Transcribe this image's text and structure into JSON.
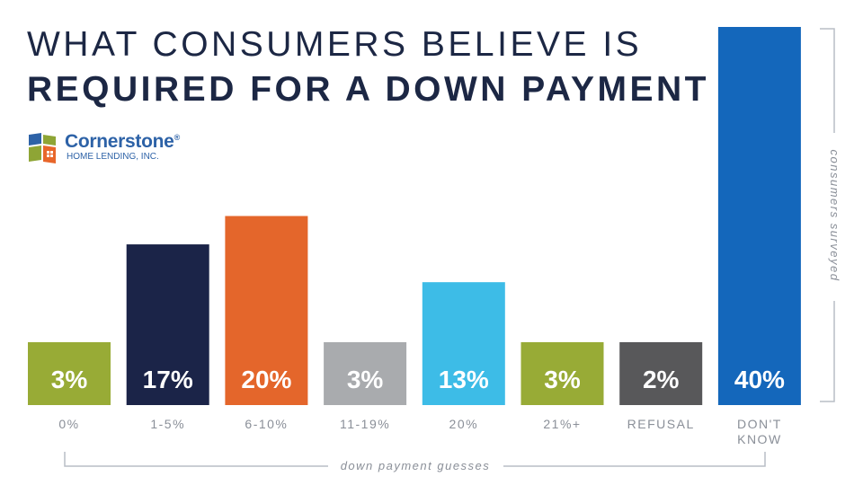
{
  "header": {
    "title_line1": "WHAT CONSUMERS BELIEVE IS",
    "title_line2": "REQUIRED FOR A DOWN PAYMENT"
  },
  "logo": {
    "name": "Cornerstone",
    "registered": "®",
    "subtitle": "HOME LENDING, INC.",
    "icon": "house-window-icon",
    "colors": {
      "green": "#8ea535",
      "blue": "#2d62a7",
      "orange": "#e8662a"
    }
  },
  "chart_data": {
    "type": "bar",
    "categories": [
      "0%",
      "1-5%",
      "6-10%",
      "11-19%",
      "20%",
      "21%+",
      "REFUSAL",
      "DON'T KNOW"
    ],
    "category_lines": [
      [
        "0%"
      ],
      [
        "1-5%"
      ],
      [
        "6-10%"
      ],
      [
        "11-19%"
      ],
      [
        "20%"
      ],
      [
        "21%+"
      ],
      [
        "REFUSAL"
      ],
      [
        "DON'T",
        "KNOW"
      ]
    ],
    "values": [
      3,
      17,
      20,
      3,
      13,
      3,
      2,
      40
    ],
    "value_labels": [
      "3%",
      "17%",
      "20%",
      "3%",
      "13%",
      "3%",
      "2%",
      "40%"
    ],
    "colors": [
      "#98ab36",
      "#1b2448",
      "#e4662b",
      "#a9abae",
      "#3dbce7",
      "#98ab36",
      "#58585a",
      "#1467bb"
    ],
    "xlabel": "down payment guesses",
    "ylabel": "consumers surveyed",
    "ylim": [
      0,
      40
    ],
    "grid": false,
    "legend": "none"
  }
}
